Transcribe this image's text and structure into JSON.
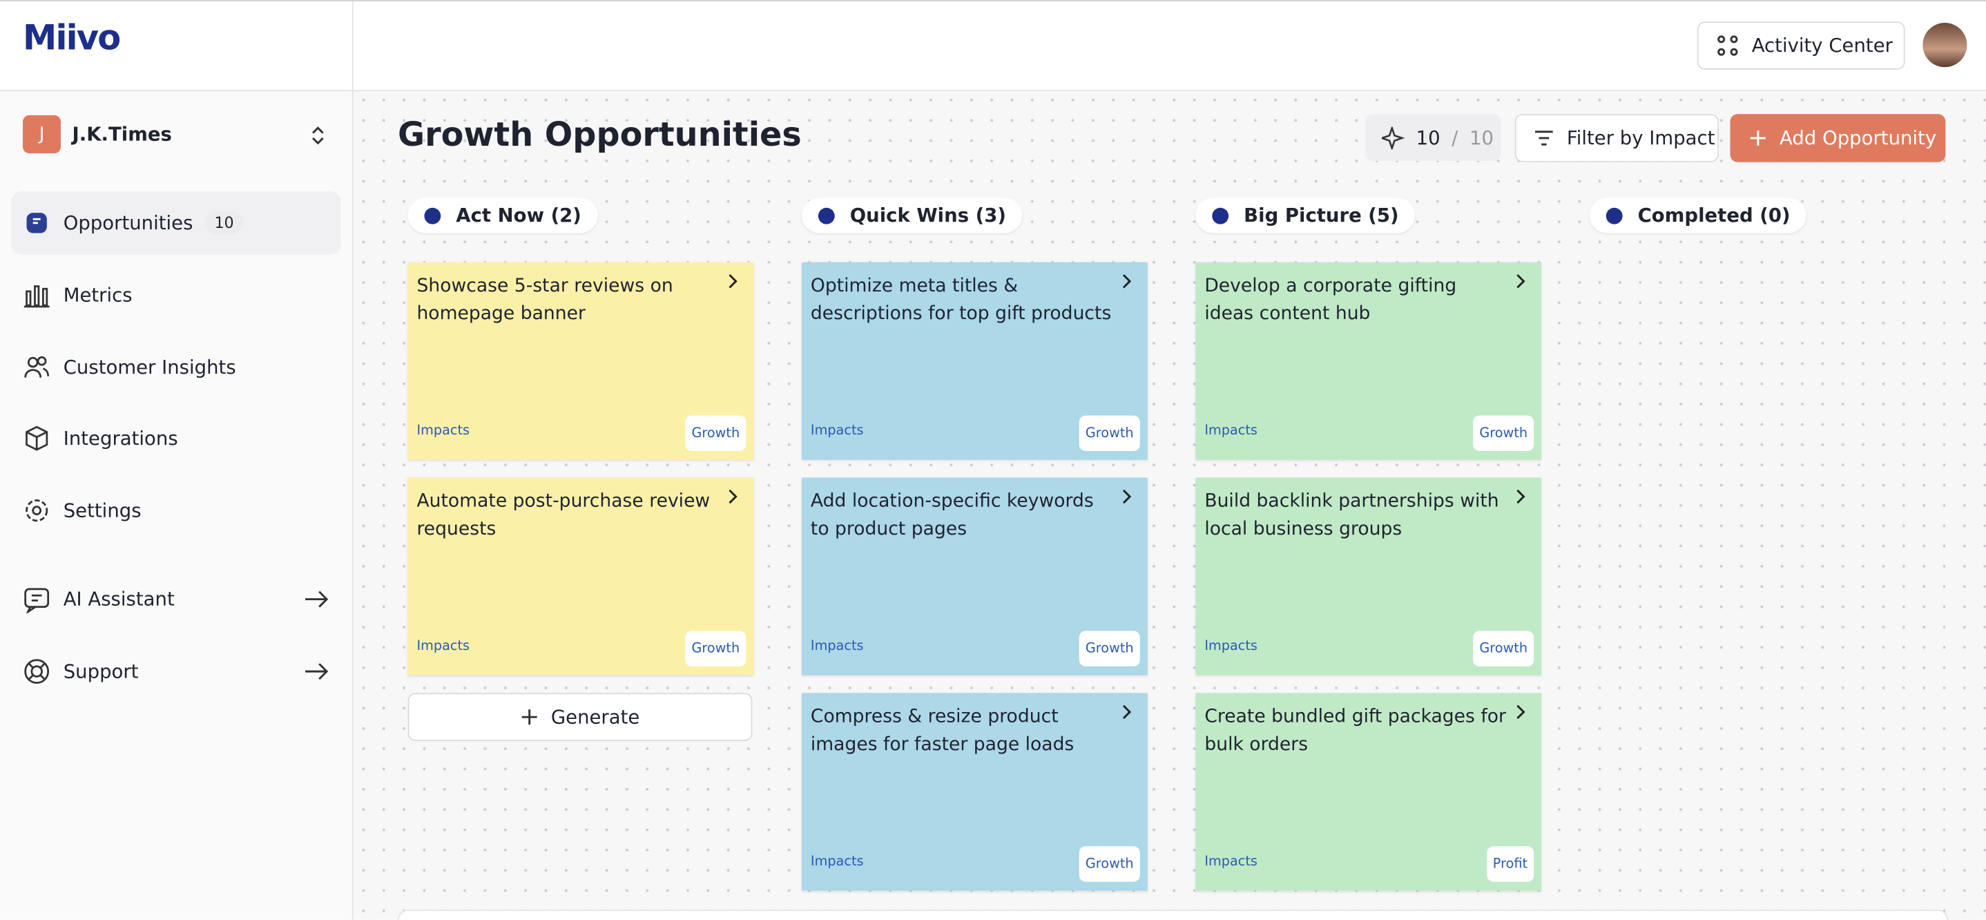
{
  "header": {
    "logo": "Miivo",
    "activity_center": "Activity Center"
  },
  "sidebar": {
    "workspace": {
      "initial": "J",
      "name": "J.K.Times"
    },
    "nav": [
      {
        "label": "Opportunities",
        "badge": 10
      },
      {
        "label": "Metrics"
      },
      {
        "label": "Customer Insights"
      },
      {
        "label": "Integrations"
      },
      {
        "label": "Settings"
      }
    ],
    "nav_secondary": [
      {
        "label": "AI Assistant"
      },
      {
        "label": "Support"
      }
    ]
  },
  "main": {
    "title": "Growth Opportunities",
    "counter": {
      "current": 10,
      "separator": "/",
      "total": 10
    },
    "filter": "Filter by Impact",
    "add": "Add Opportunity",
    "columns": [
      {
        "title": "Act Now (2)",
        "generate": "Generate",
        "cards": [
          {
            "title": "Showcase 5-star reviews on homepage banner",
            "impacts": "Impacts",
            "tag": "Growth"
          },
          {
            "title": "Automate post-purchase review requests",
            "impacts": "Impacts",
            "tag": "Growth"
          }
        ]
      },
      {
        "title": "Quick Wins (3)",
        "cards": [
          {
            "title": "Optimize meta titles & descriptions for top gift products",
            "impacts": "Impacts",
            "tag": "Growth"
          },
          {
            "title": "Add location-specific keywords to product pages",
            "impacts": "Impacts",
            "tag": "Growth"
          },
          {
            "title": "Compress & resize product images for faster page loads",
            "impacts": "Impacts",
            "tag": "Growth"
          }
        ]
      },
      {
        "title": "Big Picture (5)",
        "cards": [
          {
            "title": "Develop a corporate gifting ideas content hub",
            "impacts": "Impacts",
            "tag": "Growth"
          },
          {
            "title": "Build backlink partnerships with local business groups",
            "impacts": "Impacts",
            "tag": "Growth"
          },
          {
            "title": "Create bundled gift packages for bulk orders",
            "impacts": "Impacts",
            "tag": "Profit"
          }
        ]
      },
      {
        "title": "Completed (0)",
        "cards": []
      }
    ]
  }
}
